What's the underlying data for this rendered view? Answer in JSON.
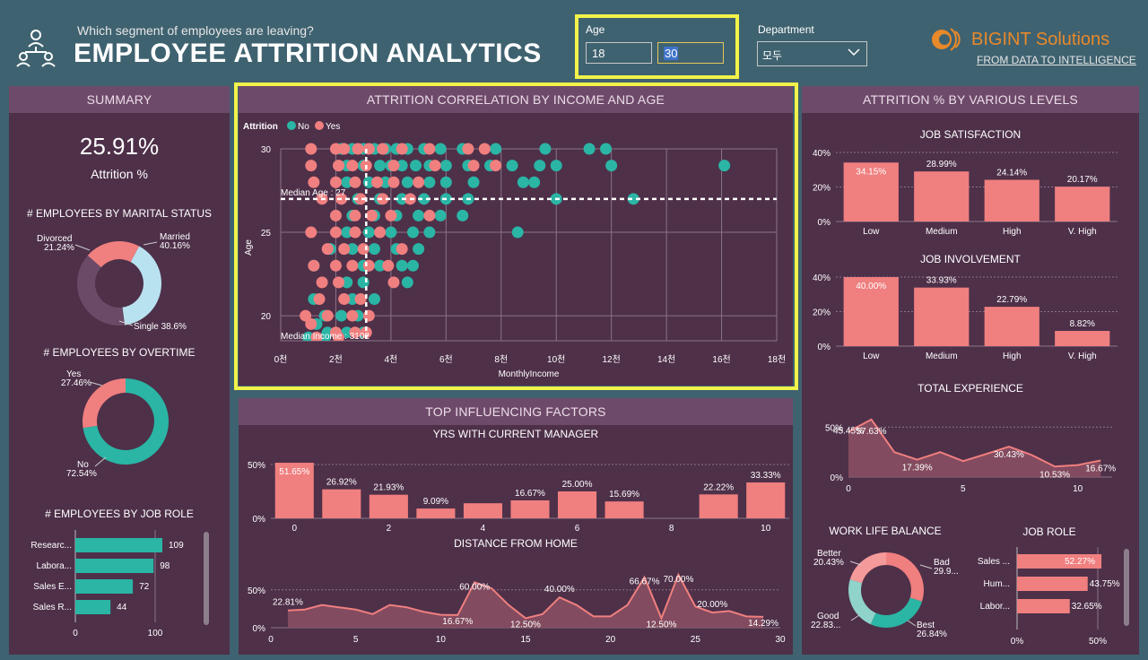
{
  "header": {
    "subtitle": "Which segment of employees are leaving?",
    "title": "EMPLOYEE ATTRITION ANALYTICS",
    "age_label": "Age",
    "age_min": "18",
    "age_max": "30",
    "department_label": "Department",
    "department_value": "모두",
    "brand_name": "BIGINT Solutions",
    "brand_tagline": "FROM DATA TO INTELLIGENCE"
  },
  "summary": {
    "heading": "SUMMARY",
    "attrition_value": "25.91%",
    "attrition_label": "Attrition %",
    "marital_title": "# EMPLOYEES BY MARITAL STATUS",
    "marital": [
      {
        "label": "Married",
        "value": "40.16%",
        "pct": 40.16,
        "color": "#b9e2f0"
      },
      {
        "label": "Single",
        "value": "38.6%",
        "pct": 38.6,
        "color": "#6a4a66"
      },
      {
        "label": "Divorced",
        "value": "21.24%",
        "pct": 21.24,
        "color": "#f07f7f"
      }
    ],
    "overtime_title": "# EMPLOYEES BY OVERTIME",
    "overtime": [
      {
        "label": "Yes",
        "value": "27.46%",
        "pct": 27.46,
        "color": "#f07f7f"
      },
      {
        "label": "No",
        "value": "72.54%",
        "pct": 72.54,
        "color": "#2ab5a5"
      }
    ],
    "jobrole_title": "# EMPLOYEES BY JOB ROLE",
    "jobroles": [
      {
        "label": "Researc...",
        "value": 109
      },
      {
        "label": "Labora...",
        "value": 98
      },
      {
        "label": "Sales E...",
        "value": 72
      },
      {
        "label": "Sales R...",
        "value": 44
      }
    ],
    "jobrole_ticks": [
      "0",
      "100"
    ]
  },
  "scatter": {
    "heading": "ATTRITION CORRELATION BY INCOME AND AGE",
    "legend_title": "Attrition",
    "legend_no": "No",
    "legend_yes": "Yes",
    "median_age_label": "Median Age : 27",
    "median_income_label": "Median Income : 3102",
    "xlabel": "MonthlyIncome",
    "ylabel": "Age",
    "x_ticks": [
      "0천",
      "2천",
      "4천",
      "6천",
      "8천",
      "10천",
      "12천",
      "14천",
      "16천",
      "18천"
    ],
    "y_ticks": [
      "20",
      "25",
      "30"
    ]
  },
  "factors": {
    "heading": "TOP INFLUENCING FACTORS",
    "manager_title": "YRS WITH CURRENT MANAGER",
    "distance_title": "DISTANCE FROM HOME"
  },
  "levels": {
    "heading": "ATTRITION % BY VARIOUS LEVELS",
    "job_satisfaction_title": "JOB SATISFACTION",
    "job_involvement_title": "JOB INVOLVEMENT",
    "total_experience_title": "TOTAL EXPERIENCE",
    "wlb_title": "WORK LIFE BALANCE",
    "jobrole_title": "JOB ROLE",
    "wlb": [
      {
        "label": "Bad",
        "value": "29.9...",
        "pct": 29.9,
        "color": "#f07f7f"
      },
      {
        "label": "Best",
        "value": "26.84%",
        "pct": 26.84,
        "color": "#2ab5a5"
      },
      {
        "label": "Good",
        "value": "22.83...",
        "pct": 22.83,
        "color": "#8fd3cb"
      },
      {
        "label": "Better",
        "value": "20.43%",
        "pct": 20.43,
        "color": "#f49a9a"
      }
    ],
    "jobroles": [
      {
        "label": "Sales ...",
        "value": "52.27%",
        "pct": 52.27
      },
      {
        "label": "Hum...",
        "value": "43.75%",
        "pct": 43.75
      },
      {
        "label": "Labor...",
        "value": "32.65%",
        "pct": 32.65
      }
    ],
    "jobrole_ticks": [
      "0%",
      "50%"
    ]
  },
  "chart_data": [
    {
      "type": "scatter",
      "title": "ATTRITION CORRELATION BY INCOME AND AGE",
      "xlabel": "MonthlyIncome",
      "ylabel": "Age",
      "xlim": [
        0,
        18000
      ],
      "ylim": [
        18.5,
        30
      ],
      "median_age": 27,
      "median_income": 3102,
      "series": [
        {
          "name": "No",
          "color": "#2ab5a5",
          "points": [
            [
              2200,
              30
            ],
            [
              2600,
              30
            ],
            [
              3000,
              30
            ],
            [
              3400,
              30
            ],
            [
              3800,
              30
            ],
            [
              4200,
              30
            ],
            [
              4600,
              30
            ],
            [
              5200,
              30
            ],
            [
              5800,
              30
            ],
            [
              6600,
              30
            ],
            [
              7800,
              30
            ],
            [
              9600,
              30
            ],
            [
              11200,
              30
            ],
            [
              11800,
              30
            ],
            [
              2400,
              29
            ],
            [
              3000,
              29
            ],
            [
              3600,
              29
            ],
            [
              4000,
              29
            ],
            [
              4400,
              29
            ],
            [
              4900,
              29
            ],
            [
              5400,
              29
            ],
            [
              6000,
              29
            ],
            [
              6800,
              29
            ],
            [
              7600,
              29
            ],
            [
              8400,
              29
            ],
            [
              9400,
              29
            ],
            [
              10000,
              29
            ],
            [
              12000,
              29
            ],
            [
              16100,
              29
            ],
            [
              2400,
              28
            ],
            [
              3200,
              28
            ],
            [
              3800,
              28
            ],
            [
              4600,
              28
            ],
            [
              5400,
              28
            ],
            [
              6000,
              28
            ],
            [
              7000,
              28
            ],
            [
              8800,
              28
            ],
            [
              9200,
              28
            ],
            [
              2800,
              27
            ],
            [
              3600,
              27
            ],
            [
              4400,
              27
            ],
            [
              5200,
              27
            ],
            [
              6000,
              27
            ],
            [
              6800,
              27
            ],
            [
              10000,
              27
            ],
            [
              12800,
              27
            ],
            [
              2600,
              26
            ],
            [
              3400,
              26
            ],
            [
              4200,
              26
            ],
            [
              5000,
              26
            ],
            [
              5800,
              26
            ],
            [
              6600,
              26
            ],
            [
              2400,
              25
            ],
            [
              3200,
              25
            ],
            [
              4000,
              25
            ],
            [
              4800,
              25
            ],
            [
              5400,
              25
            ],
            [
              8600,
              25
            ],
            [
              1800,
              24
            ],
            [
              2600,
              24
            ],
            [
              3400,
              24
            ],
            [
              4200,
              24
            ],
            [
              5000,
              24
            ],
            [
              3000,
              23
            ],
            [
              3600,
              23
            ],
            [
              4400,
              23
            ],
            [
              4800,
              23
            ],
            [
              1200,
              23
            ],
            [
              2400,
              22
            ],
            [
              3000,
              22
            ],
            [
              4600,
              22
            ],
            [
              2600,
              21
            ],
            [
              3400,
              21
            ],
            [
              1200,
              21
            ],
            [
              1600,
              20
            ],
            [
              2200,
              20
            ],
            [
              2800,
              20
            ],
            [
              1300,
              19.5
            ],
            [
              1700,
              19
            ],
            [
              2400,
              19
            ],
            [
              3000,
              19
            ],
            [
              1000,
              18.7
            ],
            [
              1600,
              18.7
            ]
          ]
        },
        {
          "name": "Yes",
          "color": "#f07f7f",
          "points": [
            [
              1100,
              30
            ],
            [
              2000,
              30
            ],
            [
              2300,
              30
            ],
            [
              2800,
              30
            ],
            [
              3200,
              30
            ],
            [
              3700,
              30
            ],
            [
              4400,
              30
            ],
            [
              5400,
              30
            ],
            [
              6800,
              30
            ],
            [
              7400,
              30
            ],
            [
              1100,
              29
            ],
            [
              2100,
              29
            ],
            [
              2600,
              29
            ],
            [
              3100,
              29
            ],
            [
              4100,
              29
            ],
            [
              5600,
              29
            ],
            [
              7000,
              29
            ],
            [
              7800,
              29
            ],
            [
              1200,
              28
            ],
            [
              2000,
              28
            ],
            [
              2700,
              28
            ],
            [
              3500,
              28
            ],
            [
              4100,
              28
            ],
            [
              5000,
              28
            ],
            [
              1500,
              27
            ],
            [
              2200,
              27
            ],
            [
              2900,
              27
            ],
            [
              3700,
              27
            ],
            [
              4700,
              27
            ],
            [
              2000,
              26
            ],
            [
              2700,
              26
            ],
            [
              3300,
              26
            ],
            [
              4000,
              26
            ],
            [
              5400,
              26
            ],
            [
              1100,
              25
            ],
            [
              2000,
              25
            ],
            [
              2700,
              25
            ],
            [
              3600,
              25
            ],
            [
              1700,
              24
            ],
            [
              2300,
              24
            ],
            [
              3000,
              24
            ],
            [
              4400,
              24
            ],
            [
              1200,
              23
            ],
            [
              2000,
              23
            ],
            [
              2600,
              23
            ],
            [
              3200,
              23
            ],
            [
              3900,
              23
            ],
            [
              4100,
              22
            ],
            [
              2100,
              22
            ],
            [
              1500,
              22
            ],
            [
              1400,
              21
            ],
            [
              2300,
              21
            ],
            [
              2900,
              21
            ],
            [
              900,
              20
            ],
            [
              1700,
              20
            ],
            [
              2600,
              20
            ],
            [
              3200,
              20
            ],
            [
              1100,
              19.5
            ],
            [
              2000,
              19
            ],
            [
              2700,
              19
            ],
            [
              3100,
              19
            ],
            [
              1300,
              18.7
            ],
            [
              2100,
              18.7
            ]
          ]
        }
      ]
    },
    {
      "type": "bar",
      "title": "YRS WITH CURRENT MANAGER",
      "categories": [
        0,
        1,
        2,
        3,
        4,
        5,
        6,
        7,
        8,
        9,
        10
      ],
      "values": [
        51.65,
        26.92,
        21.93,
        9.09,
        14,
        16.67,
        25.0,
        15.69,
        0,
        22.22,
        33.33
      ],
      "labels": [
        "51.65%",
        "26.92%",
        "21.93%",
        "9.09%",
        "",
        "16.67%",
        "25.00%",
        "15.69%",
        "",
        "22.22%",
        "33.33%"
      ],
      "x_ticks": [
        "0",
        "2",
        "4",
        "6",
        "8",
        "10"
      ],
      "y_ticks": [
        "0%",
        "50%"
      ],
      "ylim": [
        0,
        60
      ]
    },
    {
      "type": "area",
      "title": "DISTANCE FROM HOME",
      "x": [
        1,
        2,
        3,
        4,
        5,
        6,
        7,
        8,
        9,
        10,
        11,
        12,
        13,
        14,
        15,
        16,
        17,
        18,
        19,
        20,
        21,
        22,
        23,
        24,
        25,
        26,
        27,
        28,
        29
      ],
      "values": [
        22.81,
        24,
        30,
        27,
        24,
        18,
        30,
        27,
        21,
        17,
        16.67,
        60,
        52,
        30,
        12.5,
        18,
        40,
        30,
        15,
        15,
        30,
        66.67,
        12.5,
        70,
        28,
        20,
        22,
        15,
        14.29
      ],
      "labels": [
        {
          "i": 0,
          "t": "22.81%"
        },
        {
          "i": 10,
          "t": "16.67%"
        },
        {
          "i": 11,
          "t": "60.00%"
        },
        {
          "i": 14,
          "t": "12.50%"
        },
        {
          "i": 16,
          "t": "40.00%"
        },
        {
          "i": 21,
          "t": "66.67%"
        },
        {
          "i": 22,
          "t": "12.50%"
        },
        {
          "i": 23,
          "t": "70.00%"
        },
        {
          "i": 25,
          "t": "20.00%"
        },
        {
          "i": 28,
          "t": "14.29%"
        }
      ],
      "x_ticks": [
        "0",
        "5",
        "10",
        "15",
        "20",
        "25",
        "30"
      ],
      "y_ticks": [
        "0%",
        "50%"
      ],
      "ylim": [
        0,
        90
      ]
    },
    {
      "type": "bar",
      "title": "JOB SATISFACTION",
      "categories": [
        "Low",
        "Medium",
        "High",
        "V. High"
      ],
      "values": [
        34.15,
        28.99,
        24.14,
        20.17
      ],
      "labels": [
        "34.15%",
        "28.99%",
        "24.14%",
        "20.17%"
      ],
      "y_ticks": [
        "0%",
        "20%",
        "40%"
      ],
      "ylim": [
        0,
        40
      ]
    },
    {
      "type": "bar",
      "title": "JOB INVOLVEMENT",
      "categories": [
        "Low",
        "Medium",
        "High",
        "V. High"
      ],
      "values": [
        40.0,
        33.93,
        22.79,
        8.82
      ],
      "labels": [
        "40.00%",
        "33.93%",
        "22.79%",
        "8.82%"
      ],
      "y_ticks": [
        "0%",
        "20%",
        "40%"
      ],
      "ylim": [
        0,
        40
      ]
    },
    {
      "type": "area",
      "title": "TOTAL EXPERIENCE",
      "x": [
        0,
        1,
        2,
        3,
        4,
        5,
        6,
        7,
        8,
        9,
        10,
        11
      ],
      "values": [
        45.45,
        57.63,
        25,
        17.39,
        25,
        16,
        23,
        30.43,
        22,
        10.53,
        12,
        16.67
      ],
      "labels": [
        {
          "i": 0,
          "t": "45.45%"
        },
        {
          "i": 1,
          "t": "57.63%"
        },
        {
          "i": 3,
          "t": "17.39%"
        },
        {
          "i": 7,
          "t": "30.43%"
        },
        {
          "i": 9,
          "t": "10.53%"
        },
        {
          "i": 11,
          "t": "16.67%"
        }
      ],
      "x_ticks": [
        "0",
        "5",
        "10"
      ],
      "y_ticks": [
        "0%",
        "50%"
      ],
      "ylim": [
        0,
        70
      ]
    }
  ]
}
